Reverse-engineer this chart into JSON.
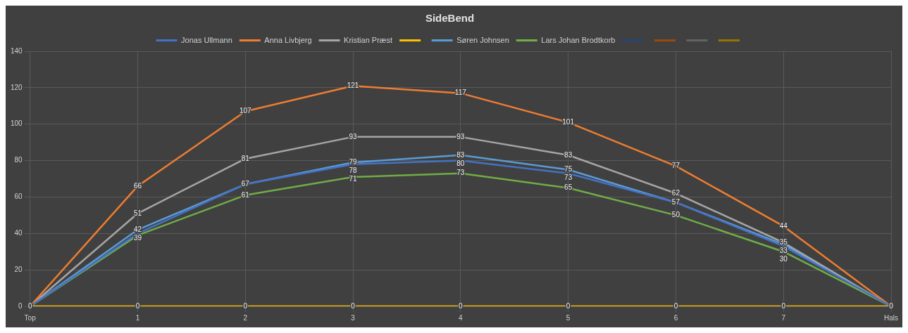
{
  "chart_data": {
    "type": "line",
    "title": "SideBend",
    "categories": [
      "Top",
      "1",
      "2",
      "3",
      "4",
      "5",
      "6",
      "7",
      "Hals"
    ],
    "series": [
      {
        "name": "Jonas Ullmann",
        "color": "#4472c4",
        "values": [
          0,
          40,
          67,
          78,
          80,
          73,
          57,
          33,
          0
        ],
        "value_labels": [
          null,
          null,
          "67",
          "78",
          "80",
          "73",
          "57",
          "33",
          null
        ]
      },
      {
        "name": "Anna Livbjerg",
        "color": "#ed7d31",
        "values": [
          0,
          66,
          107,
          121,
          117,
          101,
          77,
          44,
          0
        ],
        "value_labels": [
          null,
          "66",
          "107",
          "121",
          "117",
          "101",
          "77",
          "44",
          null
        ]
      },
      {
        "name": "Kristian Præst",
        "color": "#a5a5a5",
        "values": [
          0,
          51,
          81,
          93,
          93,
          83,
          62,
          35,
          0
        ],
        "value_labels": [
          null,
          "51",
          "81",
          "93",
          "93",
          "83",
          "62",
          "35",
          null
        ]
      },
      {
        "color": "#ffc000",
        "values": [
          0,
          0,
          0,
          0,
          0,
          0,
          0,
          0,
          0
        ],
        "value_labels": [
          "0",
          "0",
          "0",
          "0",
          "0",
          "0",
          "0",
          "0",
          "0"
        ]
      },
      {
        "name": "Søren Johnsen",
        "color": "#5b9bd5",
        "values": [
          0,
          42,
          67,
          79,
          83,
          75,
          57,
          34,
          0
        ],
        "value_labels": [
          null,
          "42",
          null,
          "79",
          "83",
          "75",
          null,
          null,
          null
        ]
      },
      {
        "name": "Lars Johan Brodtkorb",
        "color": "#70ad47",
        "values": [
          0,
          39,
          61,
          71,
          73,
          65,
          50,
          30,
          0
        ],
        "value_labels": [
          null,
          "39",
          "61",
          "71",
          "73",
          "65",
          "50",
          "30",
          null
        ]
      },
      {
        "color": "#264478",
        "values": [
          null,
          null,
          null,
          null,
          null,
          null,
          null,
          null,
          null
        ]
      },
      {
        "color": "#9e480e",
        "values": [
          null,
          null,
          null,
          null,
          null,
          null,
          null,
          null,
          null
        ]
      },
      {
        "color": "#636363",
        "values": [
          null,
          null,
          null,
          null,
          null,
          null,
          null,
          null,
          null
        ]
      },
      {
        "color": "#997300",
        "values": [
          null,
          null,
          null,
          null,
          null,
          null,
          null,
          null,
          null
        ]
      }
    ],
    "ylim": [
      0,
      140
    ],
    "yticks": [
      0,
      20,
      40,
      60,
      80,
      100,
      120,
      140
    ],
    "grid": true,
    "legend": "top",
    "marker": "none",
    "line_style": "solid"
  }
}
